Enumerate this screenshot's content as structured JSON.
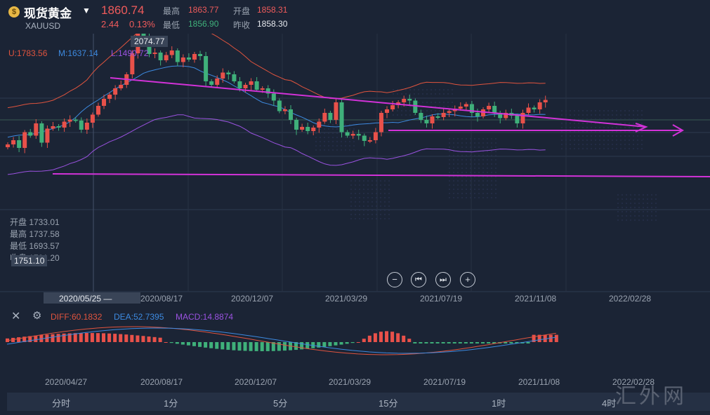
{
  "header": {
    "title": "现货黄金",
    "symbol": "XAUUSD",
    "last_price": "1860.74",
    "change": "2.44",
    "change_pct": "0.13%",
    "high_label": "最高",
    "high": "1863.77",
    "open_label": "开盘",
    "open": "1858.31",
    "low_label": "最低",
    "low": "1856.90",
    "prev_label": "昨收",
    "prev": "1858.30"
  },
  "indicators": {
    "boll_u": "U:1783.56",
    "boll_m": "M:1637.14",
    "boll_l": "L:1490.72",
    "max_label": "2074.77",
    "diff": "DIFF:60.1832",
    "dea": "DEA:52.7395",
    "macd": "MACD:14.8874"
  },
  "crosshair": {
    "open": "开盘 1733.01",
    "high": "最高 1737.58",
    "low": "最低 1693.57",
    "close": "收盘 1701.20",
    "price_tag": "1751.10",
    "date_tag": "2020/05/25 —"
  },
  "axis_main": [
    "2020/08/17",
    "2020/12/07",
    "2021/03/29",
    "2021/07/19",
    "2021/11/08",
    "2022/02/28"
  ],
  "axis_macd": [
    "2020/04/27",
    "2020/08/17",
    "2020/12/07",
    "2021/03/29",
    "2021/07/19",
    "2021/11/08",
    "2022/02/28"
  ],
  "timeframes": [
    "分时",
    "1分",
    "5分",
    "15分",
    "1时",
    "4时"
  ],
  "watermark": "汇外网",
  "colors": {
    "up": "#e8514a",
    "down": "#3fb07a",
    "trend": "#d232d8",
    "upper": "#e0543e",
    "mid": "#3d8ae0",
    "lower": "#9a52e0"
  },
  "chart_data": {
    "type": "candlestick",
    "symbol": "XAUUSD",
    "y_max_marker": 2074.77,
    "candles_close": [
      1700,
      1712,
      1690,
      1735,
      1725,
      1760,
      1705,
      1745,
      1752,
      1748,
      1765,
      1771,
      1768,
      1742,
      1762,
      1785,
      1810,
      1830,
      1842,
      1860,
      1870,
      1900,
      1960,
      2030,
      2010,
      1958,
      1962,
      1940,
      1955,
      1968,
      1935,
      1948,
      1942,
      1958,
      1952,
      1880,
      1870,
      1888,
      1905,
      1900,
      1880,
      1860,
      1870,
      1880,
      1856,
      1860,
      1845,
      1825,
      1795,
      1800,
      1770,
      1742,
      1750,
      1738,
      1748,
      1765,
      1790,
      1770,
      1820,
      1735,
      1725,
      1730,
      1725,
      1710,
      1712,
      1735,
      1790,
      1800,
      1812,
      1820,
      1830,
      1825,
      1790,
      1770,
      1760,
      1780,
      1778,
      1790,
      1795,
      1802,
      1808,
      1815,
      1790,
      1780,
      1800,
      1810,
      1790,
      1775,
      1790,
      1782,
      1760,
      1790,
      1805,
      1800,
      1820,
      1827
    ],
    "boll_upper": 1783.56,
    "boll_mid": 1637.14,
    "boll_lower": 1490.72,
    "macd": {
      "diff": 60.1832,
      "dea": 52.7395,
      "macd": 14.8874
    }
  }
}
